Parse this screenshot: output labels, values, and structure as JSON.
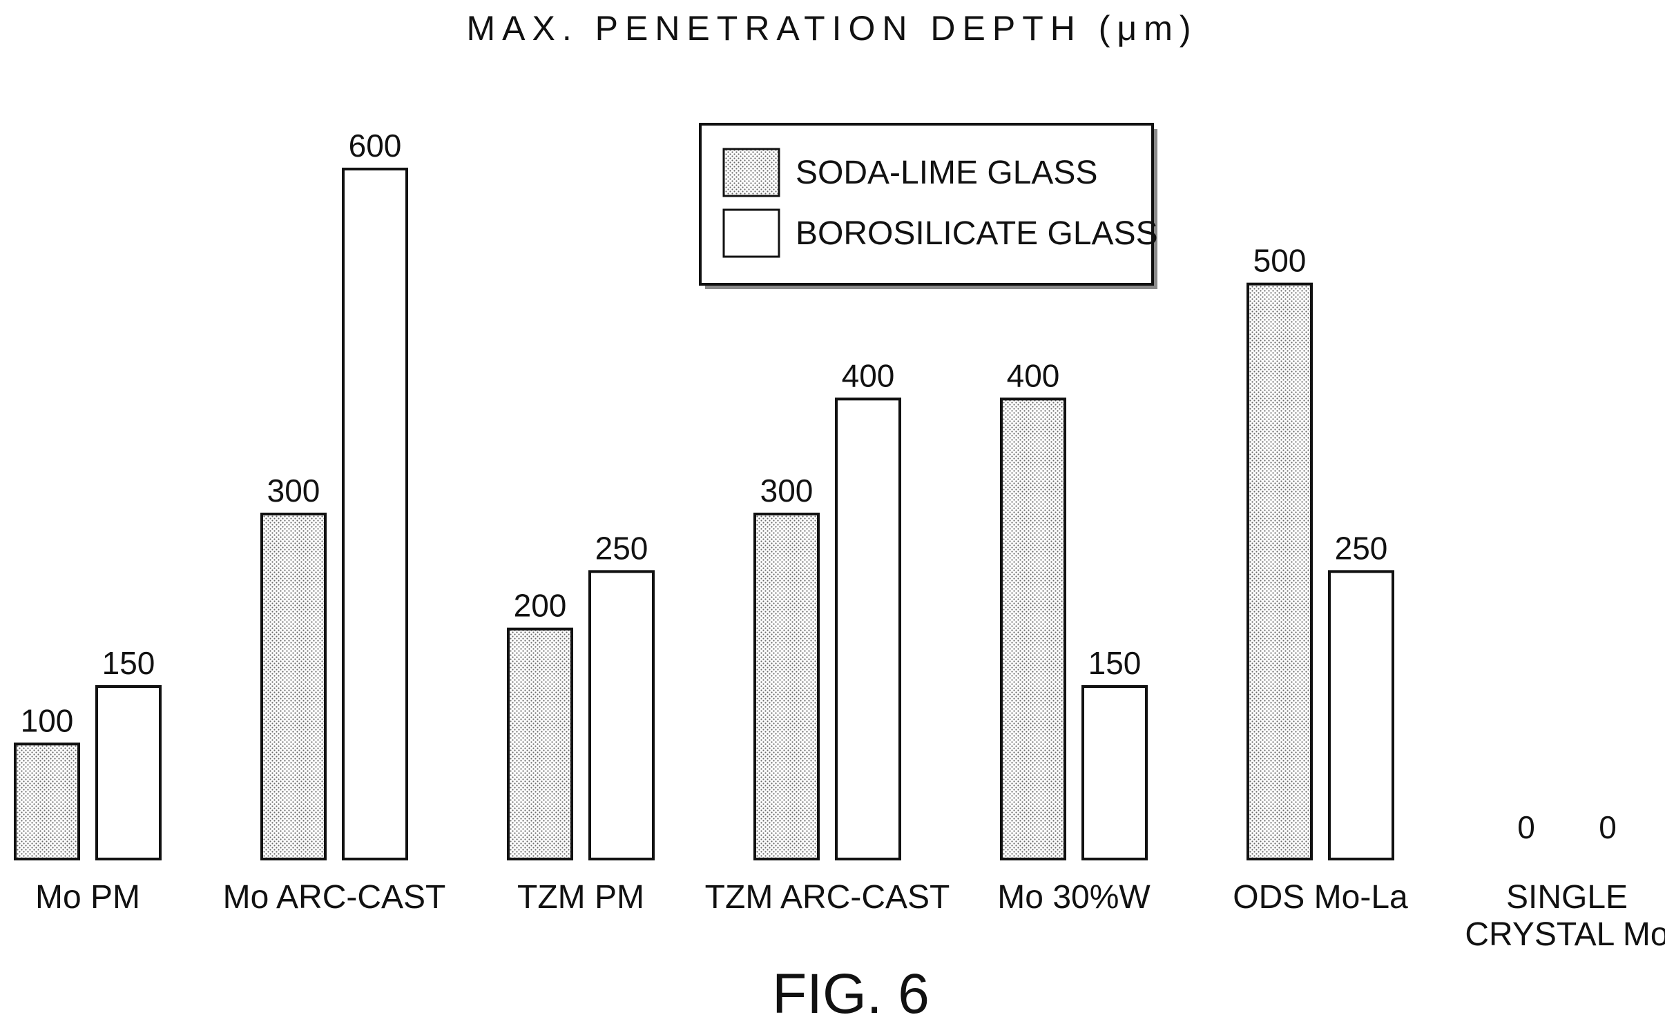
{
  "chart_data": {
    "type": "bar",
    "title": "MAX. PENETRATION DEPTH (μm)",
    "categories": [
      [
        "Mo PM"
      ],
      [
        "Mo ARC-CAST"
      ],
      [
        "TZM PM"
      ],
      [
        "TZM ARC-CAST"
      ],
      [
        "Mo 30%W"
      ],
      [
        "ODS Mo-La"
      ],
      [
        "SINGLE",
        "CRYSTAL Mo"
      ]
    ],
    "series": [
      {
        "name": "SODA-LIME GLASS",
        "pattern": "dotted",
        "values": [
          100,
          300,
          200,
          300,
          400,
          500,
          0
        ]
      },
      {
        "name": "BOROSILICATE GLASS",
        "pattern": "plain",
        "values": [
          150,
          600,
          250,
          400,
          150,
          250,
          0
        ]
      }
    ],
    "xlabel": "",
    "ylabel": "",
    "ylim": [
      0,
      600
    ],
    "grid": false,
    "legend_position": "top-center",
    "colors": {
      "ink": "#111111",
      "fill": "#ffffff",
      "dots": "#6a6a6a",
      "legend_shadow": "#8a8a8a"
    }
  },
  "caption": "FIG. 6"
}
